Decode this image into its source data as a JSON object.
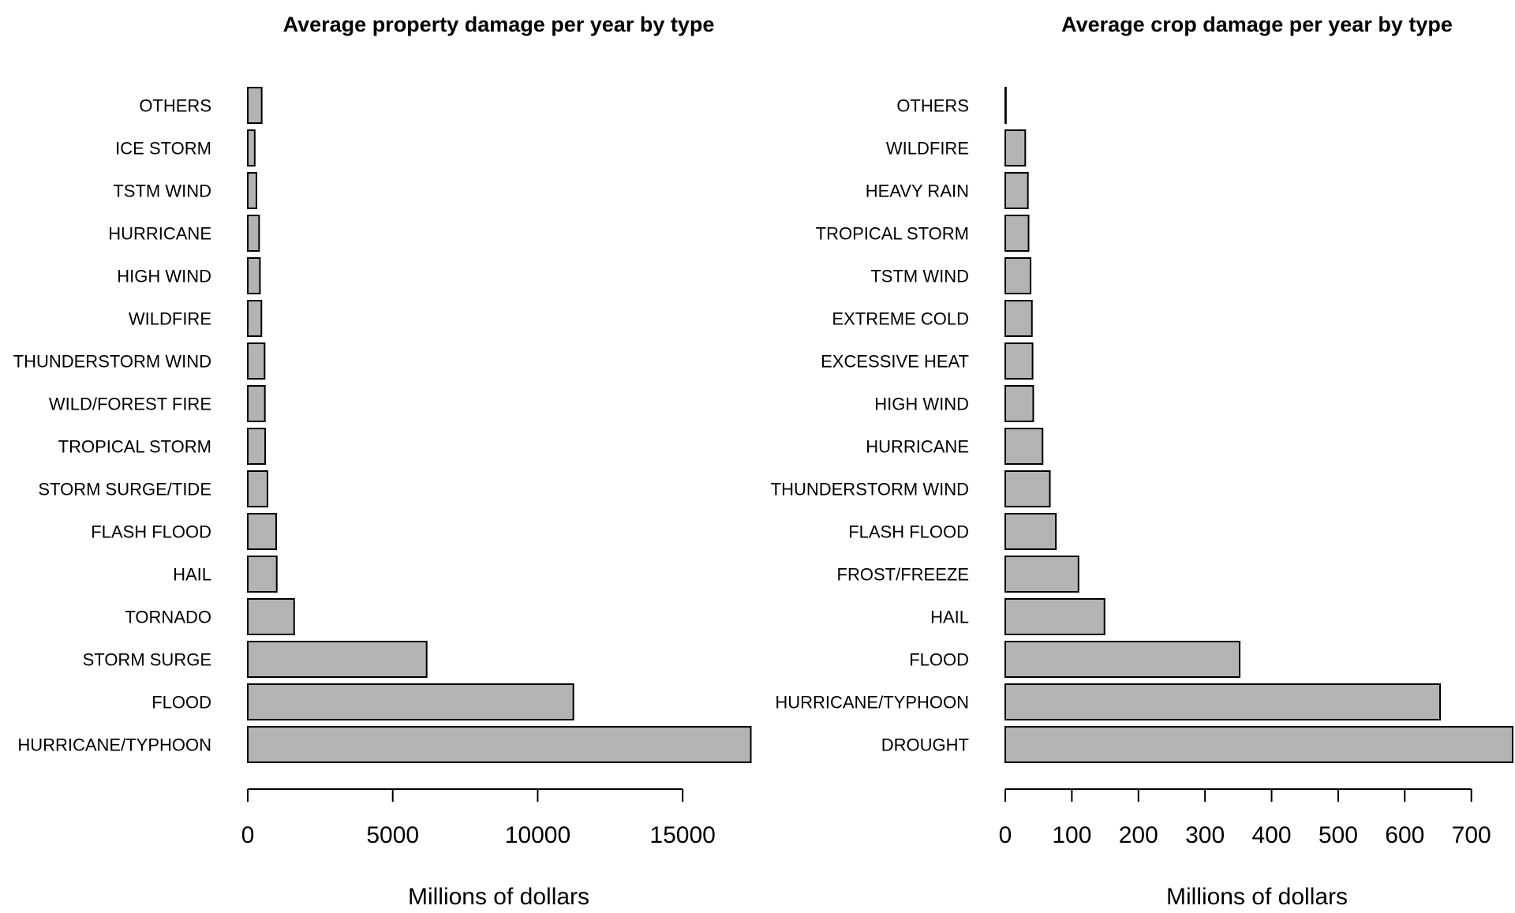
{
  "chart_data": [
    {
      "type": "bar",
      "orientation": "horizontal",
      "title": "Average property damage per year by type",
      "xlabel": "Millions of dollars",
      "ylabel": "",
      "xlim": [
        0,
        17500
      ],
      "xticks": [
        0,
        5000,
        10000,
        15000
      ],
      "tick_labels": [
        "0",
        "5000",
        "10000",
        "15000"
      ],
      "categories": [
        "HURRICANE/TYPHOON",
        "FLOOD",
        "STORM SURGE",
        "TORNADO",
        "HAIL",
        "FLASH FLOOD",
        "STORM SURGE/TIDE",
        "TROPICAL STORM",
        "WILD/FOREST FIRE",
        "THUNDERSTORM WIND",
        "WILDFIRE",
        "HIGH WIND",
        "HURRICANE",
        "TSTM WIND",
        "ICE STORM",
        "OTHERS"
      ],
      "values": [
        17350,
        11230,
        6170,
        1600,
        1000,
        980,
        680,
        600,
        590,
        580,
        470,
        420,
        390,
        300,
        240,
        480
      ],
      "bar_color": "#b3b3b3",
      "grid": false
    },
    {
      "type": "bar",
      "orientation": "horizontal",
      "title": "Average crop damage per year by type",
      "xlabel": "Millions of dollars",
      "ylabel": "",
      "xlim": [
        0,
        762
      ],
      "xticks": [
        0,
        100,
        200,
        300,
        400,
        500,
        600,
        700
      ],
      "tick_labels": [
        "0",
        "100",
        "200",
        "300",
        "400",
        "500",
        "600",
        "700"
      ],
      "categories": [
        "DROUGHT",
        "HURRICANE/TYPHOON",
        "FLOOD",
        "HAIL",
        "FROST/FREEZE",
        "FLASH FLOOD",
        "THUNDERSTORM WIND",
        "HURRICANE",
        "HIGH WIND",
        "EXCESSIVE HEAT",
        "EXTREME COLD",
        "TSTM WIND",
        "TROPICAL STORM",
        "HEAVY RAIN",
        "WILDFIRE",
        "OTHERS"
      ],
      "values": [
        762,
        653,
        352,
        149,
        110,
        76,
        67,
        56,
        42,
        41,
        40,
        38,
        35,
        34,
        30,
        1
      ],
      "bar_color": "#b3b3b3",
      "grid": false
    }
  ]
}
